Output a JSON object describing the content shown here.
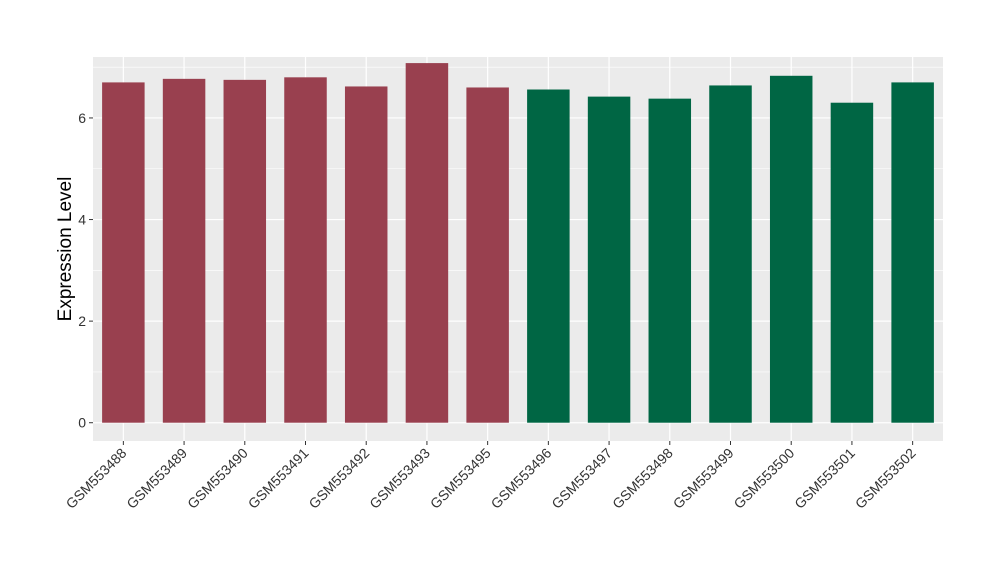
{
  "chart_data": {
    "type": "bar",
    "title": "",
    "xlabel": "",
    "ylabel": "Expression Level",
    "ylim": [
      -0.36,
      7.2
    ],
    "yticks": [
      0,
      2,
      4,
      6
    ],
    "ytick_labels": [
      "0",
      "2",
      "4",
      "6"
    ],
    "grid": true,
    "legend": "none",
    "panel_background": "#ebebeb",
    "grid_color": "#ffffff",
    "categories": [
      "GSM553488",
      "GSM553489",
      "GSM553490",
      "GSM553491",
      "GSM553492",
      "GSM553493",
      "GSM553495",
      "GSM553496",
      "GSM553497",
      "GSM553498",
      "GSM553499",
      "GSM553500",
      "GSM553501",
      "GSM553502"
    ],
    "values": [
      6.7,
      6.77,
      6.75,
      6.8,
      6.62,
      7.08,
      6.6,
      6.56,
      6.42,
      6.38,
      6.64,
      6.83,
      6.3,
      6.7
    ],
    "bar_colors": [
      "#99404f",
      "#99404f",
      "#99404f",
      "#99404f",
      "#99404f",
      "#99404f",
      "#99404f",
      "#006644",
      "#006644",
      "#006644",
      "#006644",
      "#006644",
      "#006644",
      "#006644"
    ]
  }
}
